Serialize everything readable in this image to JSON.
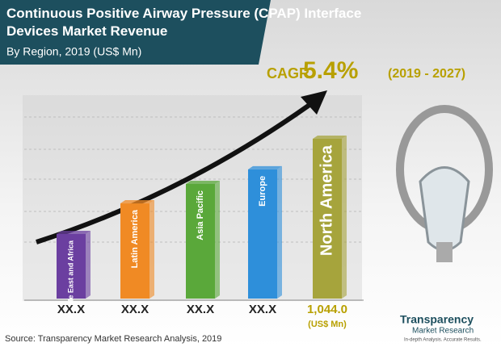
{
  "chart_data": {
    "type": "bar",
    "title": "Continuous Positive Airway Pressure (CPAP) Interface Devices Market Revenue",
    "subtitle": "By Region, 2019 (US$ Mn)",
    "categories": [
      "Middle East and Africa",
      "Latin America",
      "Asia Pacific",
      "Europe",
      "North America"
    ],
    "values": [
      422,
      622,
      749,
      844,
      1044
    ],
    "value_labels": [
      "XX.X",
      "XX.X",
      "XX.X",
      "XX.X",
      "1,044.0"
    ],
    "colors": [
      "#6b3fa0",
      "#f08a24",
      "#5aa83a",
      "#2e8fda",
      "#a6a43c"
    ],
    "unit_note": "(US$ Mn)",
    "cagr": {
      "label": "CAGR",
      "value": "5.4%",
      "period": "(2019 - 2027)"
    },
    "source": "Source: Transparency Market Research Analysis, 2019",
    "logo": {
      "name1": "Transparency",
      "name2": "Market Research",
      "tagline": "In-depth Analysis. Accurate Results."
    }
  }
}
